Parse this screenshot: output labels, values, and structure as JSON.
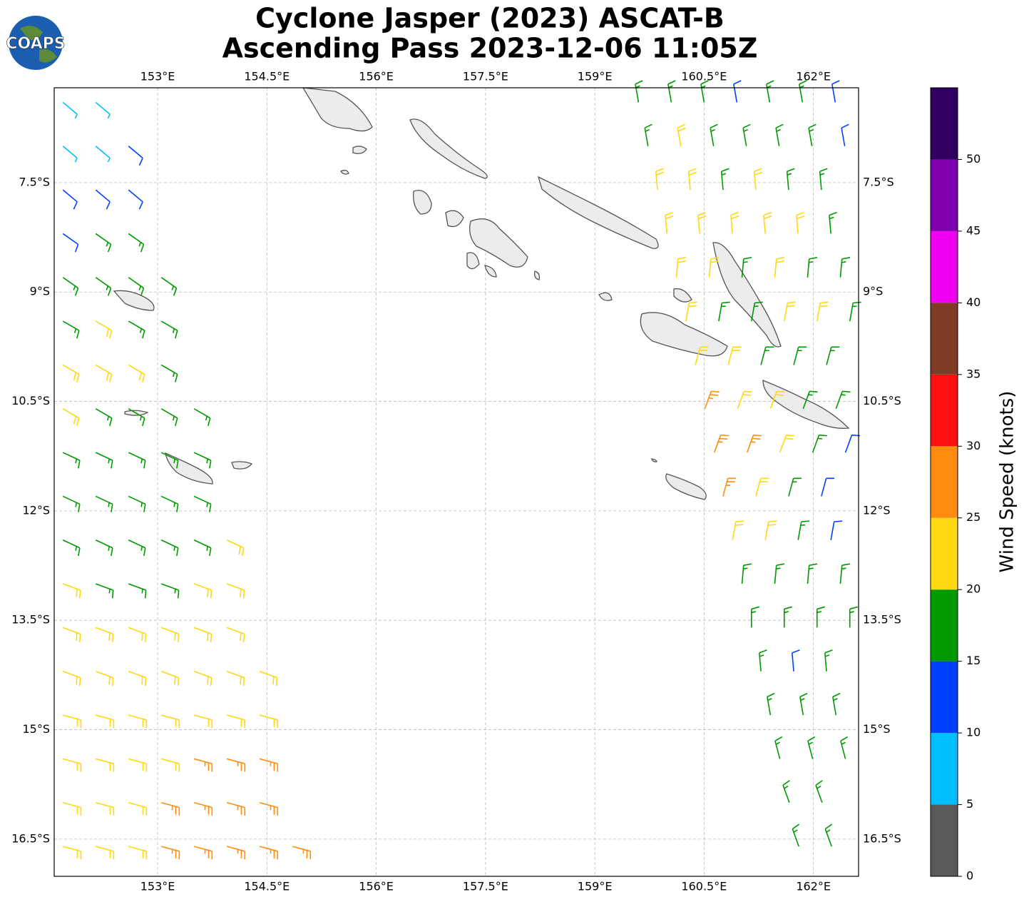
{
  "chart_data": {
    "type": "wind-barbs",
    "title": [
      "Cyclone Jasper (2023) ASCAT-B",
      "Ascending Pass 2023-12-06 11:05Z"
    ],
    "logo": "COAPS",
    "xlim": [
      151.58,
      162.62
    ],
    "ylim": [
      -17.01,
      -6.2
    ],
    "xticks": [
      {
        "value": 153,
        "label": "153°E"
      },
      {
        "value": 154.5,
        "label": "154.5°E"
      },
      {
        "value": 156,
        "label": "156°E"
      },
      {
        "value": 157.5,
        "label": "157.5°E"
      },
      {
        "value": 159,
        "label": "159°E"
      },
      {
        "value": 160.5,
        "label": "160.5°E"
      },
      {
        "value": 162,
        "label": "162°E"
      }
    ],
    "yticks": [
      {
        "value": -7.5,
        "label": "7.5°S"
      },
      {
        "value": -9,
        "label": "9°S"
      },
      {
        "value": -10.5,
        "label": "10.5°S"
      },
      {
        "value": -12,
        "label": "12°S"
      },
      {
        "value": -13.5,
        "label": "13.5°S"
      },
      {
        "value": -15,
        "label": "15°S"
      },
      {
        "value": -16.5,
        "label": "16.5°S"
      }
    ],
    "grid": true,
    "colorbar": {
      "label": "Wind Speed (knots)",
      "clim": [
        0,
        55
      ],
      "bounds": [
        0,
        5,
        10,
        15,
        20,
        25,
        30,
        35,
        40,
        45,
        50,
        55
      ],
      "colors": [
        "#595959",
        "#00bfff",
        "#0040ff",
        "#009900",
        "#ffd712",
        "#ff8c0e",
        "#ff1010",
        "#7f3b26",
        "#f000f0",
        "#8000b0",
        "#300060"
      ],
      "ticks": [
        0,
        5,
        10,
        15,
        20,
        25,
        30,
        35,
        40,
        45,
        50
      ]
    },
    "barbs": [
      {
        "lat": -6.4,
        "lon": [
          151.7,
          152.15
        ],
        "speed": [
          8,
          8
        ],
        "direction": 130
      },
      {
        "lat": -7.0,
        "lon": [
          151.7,
          152.15,
          152.6
        ],
        "speed": [
          9,
          9,
          11
        ],
        "direction": 130
      },
      {
        "lat": -7.6,
        "lon": [
          151.7,
          152.15,
          152.6
        ],
        "speed": [
          12,
          13,
          13
        ],
        "direction": 130
      },
      {
        "lat": -8.2,
        "lon": [
          151.7,
          152.15,
          152.6
        ],
        "speed": [
          14,
          16,
          17
        ],
        "direction": 125
      },
      {
        "lat": -8.8,
        "lon": [
          151.7,
          152.15,
          152.6,
          153.05
        ],
        "speed": [
          17,
          18,
          18,
          17
        ],
        "direction": 125
      },
      {
        "lat": -9.4,
        "lon": [
          151.7,
          152.15,
          152.6,
          153.05
        ],
        "speed": [
          19,
          21,
          18,
          17
        ],
        "direction": 120
      },
      {
        "lat": -10.0,
        "lon": [
          151.7,
          152.15,
          152.6,
          153.05
        ],
        "speed": [
          22,
          23,
          21,
          18
        ],
        "direction": 120
      },
      {
        "lat": -10.6,
        "lon": [
          151.7,
          152.15,
          152.6,
          153.05,
          153.5
        ],
        "speed": [
          21,
          19,
          18,
          17,
          16
        ],
        "direction": 120
      },
      {
        "lat": -11.2,
        "lon": [
          151.7,
          152.15,
          152.6,
          153.05,
          153.5
        ],
        "speed": [
          18,
          17,
          17,
          16,
          15
        ],
        "direction": 115
      },
      {
        "lat": -11.8,
        "lon": [
          151.7,
          152.15,
          152.6,
          153.05,
          153.5
        ],
        "speed": [
          18,
          17,
          17,
          17,
          16
        ],
        "direction": 115
      },
      {
        "lat": -12.4,
        "lon": [
          151.7,
          152.15,
          152.6,
          153.05,
          153.5,
          153.95
        ],
        "speed": [
          17,
          19,
          18,
          18,
          19,
          21
        ],
        "direction": 115
      },
      {
        "lat": -13.0,
        "lon": [
          151.7,
          152.15,
          152.6,
          153.05,
          153.5,
          153.95
        ],
        "speed": [
          21,
          19,
          18,
          18,
          21,
          23
        ],
        "direction": 110
      },
      {
        "lat": -13.6,
        "lon": [
          151.7,
          152.15,
          152.6,
          153.05,
          153.5,
          153.95
        ],
        "speed": [
          22,
          22,
          22,
          23,
          23,
          23
        ],
        "direction": 110
      },
      {
        "lat": -14.2,
        "lon": [
          151.7,
          152.15,
          152.6,
          153.05,
          153.5,
          153.95,
          154.4
        ],
        "speed": [
          22,
          22,
          23,
          23,
          24,
          24,
          23
        ],
        "direction": 110
      },
      {
        "lat": -14.8,
        "lon": [
          151.7,
          152.15,
          152.6,
          153.05,
          153.5,
          153.95,
          154.4
        ],
        "speed": [
          23,
          23,
          24,
          24,
          24,
          24,
          24
        ],
        "direction": 105
      },
      {
        "lat": -15.4,
        "lon": [
          151.7,
          152.15,
          152.6,
          153.05,
          153.5,
          153.95,
          154.4
        ],
        "speed": [
          23,
          24,
          24,
          24,
          25,
          26,
          26
        ],
        "direction": 105
      },
      {
        "lat": -16.0,
        "lon": [
          151.7,
          152.15,
          152.6,
          153.05,
          153.5,
          153.95,
          154.4
        ],
        "speed": [
          23,
          24,
          24,
          25,
          26,
          27,
          27
        ],
        "direction": 105
      },
      {
        "lat": -16.6,
        "lon": [
          151.7,
          152.15,
          152.6,
          153.05,
          153.5,
          153.95,
          154.4,
          154.85
        ],
        "speed": [
          22,
          23,
          24,
          25,
          26,
          27,
          27,
          26
        ],
        "direction": 105
      },
      {
        "lat": -6.4,
        "lon": [
          159.6,
          160.05,
          160.5,
          160.95,
          161.4,
          161.85,
          162.3
        ],
        "speed": [
          18,
          17,
          16,
          14,
          17,
          17,
          14
        ],
        "direction": 350
      },
      {
        "lat": -7.0,
        "lon": [
          159.73,
          160.18,
          160.63,
          161.08,
          161.53,
          161.98,
          162.43
        ],
        "speed": [
          19,
          21,
          17,
          18,
          17,
          16,
          12
        ],
        "direction": 350
      },
      {
        "lat": -7.6,
        "lon": [
          159.86,
          160.31,
          160.76,
          161.21,
          161.66,
          162.11
        ],
        "speed": [
          22,
          23,
          19,
          20,
          18,
          15
        ],
        "direction": 355
      },
      {
        "lat": -8.2,
        "lon": [
          159.99,
          160.44,
          160.89,
          161.34,
          161.79,
          162.24
        ],
        "speed": [
          23,
          22,
          21,
          22,
          20,
          17
        ],
        "direction": 355
      },
      {
        "lat": -8.8,
        "lon": [
          160.12,
          160.57,
          161.02,
          161.47,
          161.92,
          162.37
        ],
        "speed": [
          24,
          20,
          18,
          21,
          19,
          15
        ],
        "direction": 5
      },
      {
        "lat": -9.4,
        "lon": [
          160.25,
          160.7,
          161.15,
          161.6,
          162.05,
          162.5
        ],
        "speed": [
          22,
          16,
          18,
          22,
          20,
          16
        ],
        "direction": 10
      },
      {
        "lat": -10.0,
        "lon": [
          160.38,
          160.83,
          161.28,
          161.73,
          162.18
        ],
        "speed": [
          23,
          20,
          19,
          17,
          15
        ],
        "direction": 15
      },
      {
        "lat": -10.6,
        "lon": [
          160.51,
          160.96,
          161.41,
          161.86,
          162.31
        ],
        "speed": [
          27,
          24,
          22,
          19,
          17
        ],
        "direction": 20
      },
      {
        "lat": -11.2,
        "lon": [
          160.64,
          161.09,
          161.54,
          161.99,
          162.44
        ],
        "speed": [
          28,
          27,
          22,
          16,
          14
        ],
        "direction": 20
      },
      {
        "lat": -11.8,
        "lon": [
          160.76,
          161.21,
          161.66,
          162.11
        ],
        "speed": [
          26,
          24,
          18,
          14
        ],
        "direction": 15
      },
      {
        "lat": -12.4,
        "lon": [
          160.89,
          161.34,
          161.79,
          162.24
        ],
        "speed": [
          23,
          21,
          18,
          14
        ],
        "direction": 10
      },
      {
        "lat": -13.0,
        "lon": [
          161.02,
          161.47,
          161.92,
          162.37
        ],
        "speed": [
          19,
          18,
          16,
          16
        ],
        "direction": 5
      },
      {
        "lat": -13.6,
        "lon": [
          161.15,
          161.6,
          162.05,
          162.5
        ],
        "speed": [
          18,
          17,
          15,
          16
        ],
        "direction": 0
      },
      {
        "lat": -14.2,
        "lon": [
          161.28,
          161.73,
          162.18
        ],
        "speed": [
          16,
          14,
          16
        ],
        "direction": 355
      },
      {
        "lat": -14.8,
        "lon": [
          161.41,
          161.86,
          162.31
        ],
        "speed": [
          15,
          16,
          17
        ],
        "direction": 350
      },
      {
        "lat": -15.4,
        "lon": [
          161.54,
          161.99,
          162.44
        ],
        "speed": [
          16,
          17,
          17
        ],
        "direction": 345
      },
      {
        "lat": -16.0,
        "lon": [
          161.67,
          162.12
        ],
        "speed": [
          17,
          17
        ],
        "direction": 340
      },
      {
        "lat": -16.6,
        "lon": [
          161.8,
          162.25
        ],
        "speed": [
          16,
          17
        ],
        "direction": 340
      }
    ]
  }
}
